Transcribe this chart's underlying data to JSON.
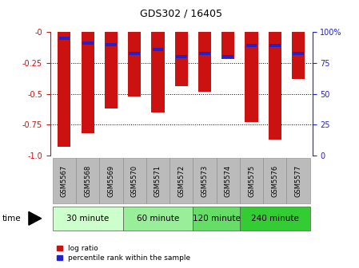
{
  "title": "GDS302 / 16405",
  "samples": [
    "GSM5567",
    "GSM5568",
    "GSM5569",
    "GSM5570",
    "GSM5571",
    "GSM5572",
    "GSM5573",
    "GSM5574",
    "GSM5575",
    "GSM5576",
    "GSM5577"
  ],
  "log_ratio": [
    -0.93,
    -0.82,
    -0.62,
    -0.52,
    -0.65,
    -0.44,
    -0.48,
    -0.22,
    -0.73,
    -0.87,
    -0.38
  ],
  "percentile_rank": [
    5,
    9,
    10,
    17,
    14,
    20,
    17,
    20,
    11,
    11,
    17
  ],
  "groups": [
    {
      "label": "30 minute",
      "indices": [
        0,
        1,
        2
      ],
      "color": "#ccffcc"
    },
    {
      "label": "60 minute",
      "indices": [
        3,
        4,
        5
      ],
      "color": "#99ee99"
    },
    {
      "label": "120 minute",
      "indices": [
        6,
        7
      ],
      "color": "#66dd66"
    },
    {
      "label": "240 minute",
      "indices": [
        8,
        9,
        10
      ],
      "color": "#33cc33"
    }
  ],
  "ylim_left": [
    -1.0,
    0.0
  ],
  "ylim_right": [
    0,
    100
  ],
  "yticks_left": [
    -1.0,
    -0.75,
    -0.5,
    -0.25,
    0.0
  ],
  "yticks_right": [
    0,
    25,
    50,
    75,
    100
  ],
  "bar_color": "#cc1111",
  "marker_color": "#2222cc",
  "bg_color": "#ffffff",
  "xticklabel_bg": "#bbbbbb",
  "left_axis_color": "#cc1111",
  "right_axis_color": "#2222cc",
  "legend_label_ratio": "log ratio",
  "legend_label_pct": "percentile rank within the sample",
  "bar_width": 0.55
}
